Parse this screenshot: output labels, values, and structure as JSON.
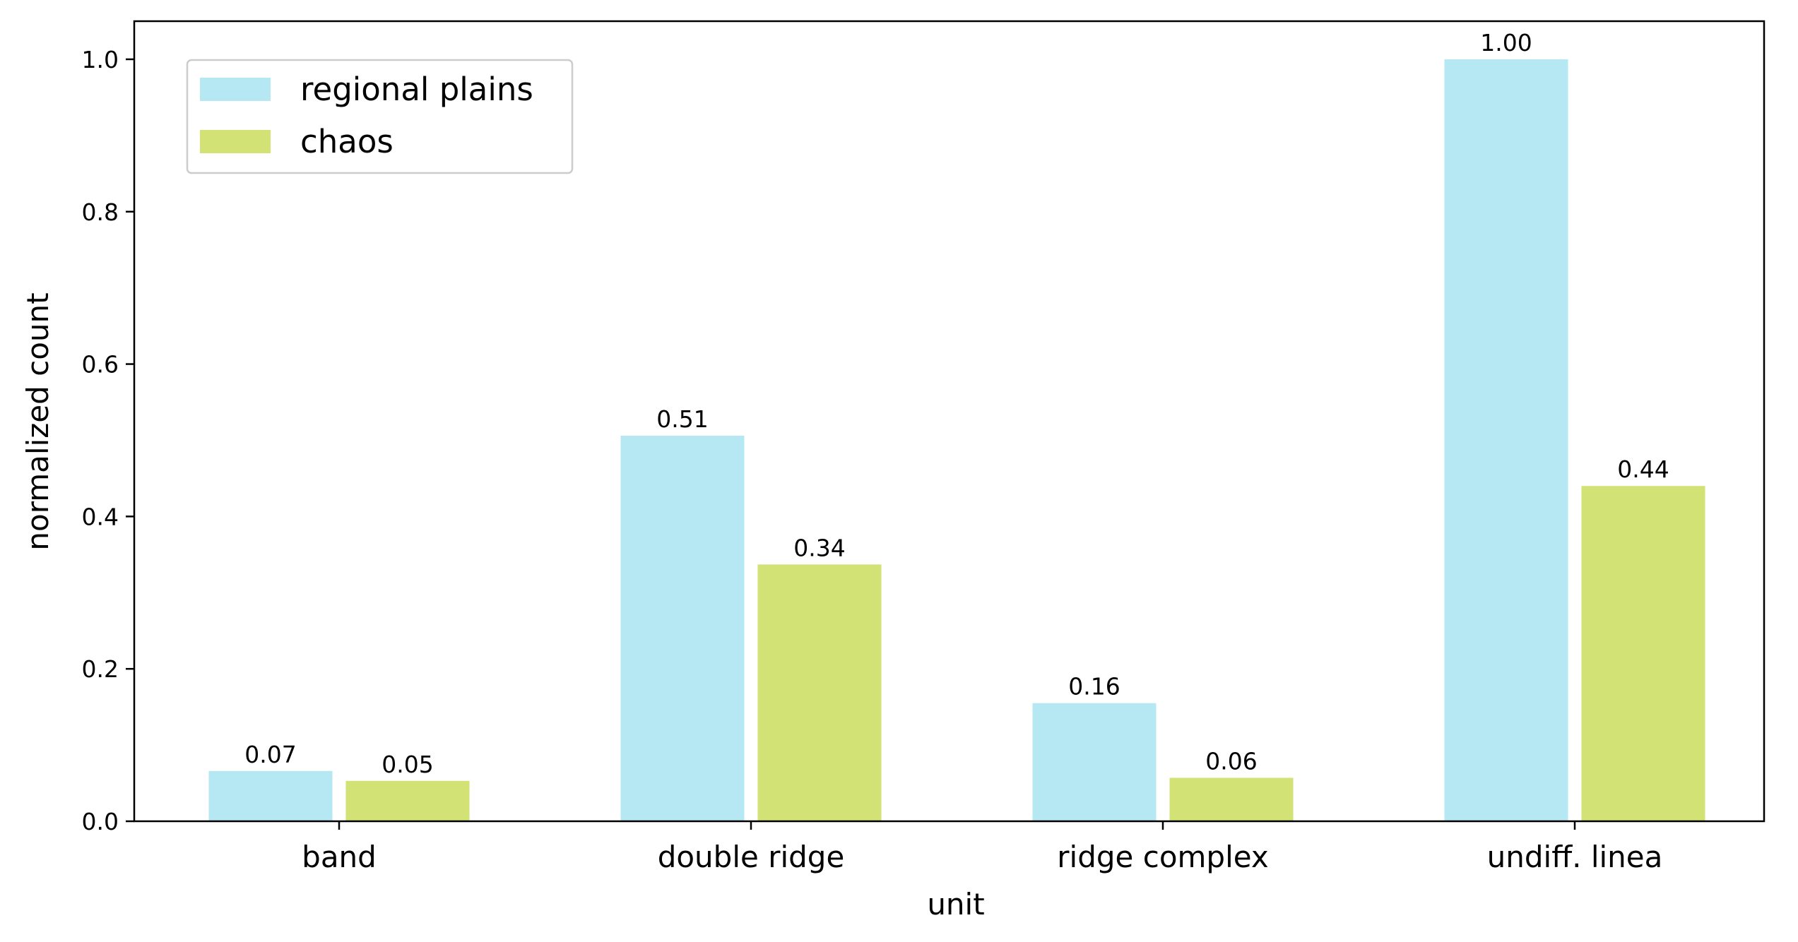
{
  "chart_data": {
    "type": "bar",
    "title": "",
    "xlabel": "unit",
    "ylabel": "normalized count",
    "categories": [
      "band",
      "double ridge",
      "ridge complex",
      "undiff. linea"
    ],
    "series": [
      {
        "name": "regional plains",
        "color": "#b5e8f2",
        "values": [
          0.066,
          0.506,
          0.155,
          1.0
        ],
        "value_labels": [
          "0.07",
          "0.51",
          "0.16",
          "1.00"
        ]
      },
      {
        "name": "chaos",
        "color": "#d2e275",
        "values": [
          0.053,
          0.337,
          0.057,
          0.44
        ],
        "value_labels": [
          "0.05",
          "0.34",
          "0.06",
          "0.44"
        ]
      }
    ],
    "ylim": [
      0,
      1.05
    ],
    "yticks": [
      0.0,
      0.2,
      0.4,
      0.6,
      0.8,
      1.0
    ],
    "ytick_labels": [
      "0.0",
      "0.2",
      "0.4",
      "0.6",
      "0.8",
      "1.0"
    ],
    "grid": false,
    "legend_position": "top-left"
  }
}
